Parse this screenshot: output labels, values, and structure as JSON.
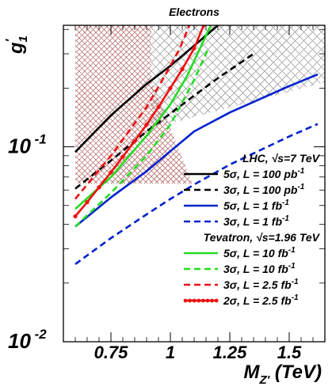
{
  "chart_data": {
    "type": "line",
    "title": "Electrons",
    "ylabel": {
      "main": "g",
      "sup": "'",
      "sub": "1"
    },
    "xlabel": {
      "main": "M",
      "sub": "Z'",
      "rest": " (TeV)"
    },
    "xlim": [
      0.55,
      1.65
    ],
    "ylim": [
      0.01,
      0.42
    ],
    "yscale": "log",
    "x_ticks": [
      "0.75",
      "1",
      "1.25",
      "1.5"
    ],
    "x_tick_values": [
      0.75,
      1.0,
      1.25,
      1.5
    ],
    "y_ticks": [
      {
        "base": "10",
        "exp": "-1",
        "value": 0.1
      },
      {
        "base": "10",
        "exp": "-2",
        "value": 0.01
      }
    ],
    "grid": false,
    "legend_position": "right",
    "excluded_regions": [
      {
        "pattern": "fine dark-red crosshatch",
        "color": "#8b1a1a",
        "x": [
          0.6,
          0.92
        ]
      },
      {
        "pattern": "coarse black crosshatch",
        "color": "#000000",
        "x": [
          0.92,
          1.65
        ]
      }
    ],
    "legend": [
      {
        "type": "header",
        "text": "LHC, √s=7 TeV"
      },
      {
        "type": "entry",
        "text": "5σ, L = 100 pb",
        "sup": "-1",
        "series": 0
      },
      {
        "type": "entry",
        "text": "3σ, L = 100 pb",
        "sup": "-1",
        "series": 1
      },
      {
        "type": "entry",
        "text": "5σ, L = 1 fb",
        "sup": "-1",
        "series": 2
      },
      {
        "type": "entry",
        "text": "3σ, L = 1 fb",
        "sup": "-1",
        "series": 3
      },
      {
        "type": "header",
        "text": "Tevatron, √s=1.96 TeV"
      },
      {
        "type": "entry",
        "text": "5σ, L = 10 fb",
        "sup": "-1",
        "series": 4
      },
      {
        "type": "entry",
        "text": "3σ, L = 10 fb",
        "sup": "-1",
        "series": 5
      },
      {
        "type": "entry",
        "text": "3σ, L = 2.5 fb",
        "sup": "-1",
        "series": 6
      },
      {
        "type": "entry",
        "text": "2σ, L = 2.5 fb",
        "sup": "-1",
        "series": 7
      }
    ],
    "series": [
      {
        "name": "5σ, L = 100 pb-1",
        "color": "#000000",
        "dash": "solid",
        "x": [
          0.6,
          0.75,
          0.9,
          1.0,
          1.1,
          1.2
        ],
        "y": [
          0.094,
          0.145,
          0.21,
          0.26,
          0.33,
          0.42
        ]
      },
      {
        "name": "3σ, L = 100 pb-1",
        "color": "#000000",
        "dash": "dashed",
        "x": [
          0.6,
          0.75,
          0.9,
          1.0,
          1.1,
          1.2,
          1.35
        ],
        "y": [
          0.061,
          0.085,
          0.12,
          0.148,
          0.183,
          0.225,
          0.3
        ]
      },
      {
        "name": "5σ, L = 1 fb-1",
        "color": "#0022cc",
        "dash": "solid",
        "x": [
          0.6,
          0.75,
          0.9,
          1.0,
          1.1,
          1.25,
          1.5,
          1.62
        ],
        "y": [
          0.039,
          0.055,
          0.075,
          0.095,
          0.12,
          0.15,
          0.205,
          0.235
        ]
      },
      {
        "name": "3σ, L = 1 fb-1",
        "color": "#0022cc",
        "dash": "dashed",
        "x": [
          0.6,
          0.75,
          0.9,
          1.0,
          1.1,
          1.25,
          1.5,
          1.62
        ],
        "y": [
          0.025,
          0.034,
          0.045,
          0.054,
          0.064,
          0.081,
          0.113,
          0.131
        ]
      },
      {
        "name": "5σ, L = 10 fb-1",
        "color": "#22dd22",
        "dash": "solid",
        "x": [
          0.6,
          0.75,
          0.9,
          1.0,
          1.07,
          1.13,
          1.17
        ],
        "y": [
          0.048,
          0.07,
          0.114,
          0.165,
          0.23,
          0.33,
          0.42
        ]
      },
      {
        "name": "3σ, L = 10 fb-1",
        "color": "#22dd22",
        "dash": "dashed",
        "x": [
          0.6,
          0.75,
          0.9,
          1.0,
          1.1,
          1.16
        ],
        "y": [
          0.039,
          0.058,
          0.09,
          0.13,
          0.22,
          0.32
        ]
      },
      {
        "name": "3σ, L = 2.5 fb-1",
        "color": "#ee1111",
        "dash": "dashed",
        "x": [
          0.6,
          0.75,
          0.9,
          0.98,
          1.04,
          1.08
        ],
        "y": [
          0.054,
          0.09,
          0.16,
          0.235,
          0.32,
          0.42
        ]
      },
      {
        "name": "2σ, L = 2.5 fb-1",
        "color": "#ee1111",
        "dash": "solid-dots",
        "x": [
          0.6,
          0.65,
          0.7,
          0.75,
          0.8,
          0.85,
          0.9,
          0.95,
          1.0,
          1.05,
          1.1,
          1.14
        ],
        "y": [
          0.044,
          0.052,
          0.062,
          0.074,
          0.089,
          0.107,
          0.13,
          0.16,
          0.2,
          0.25,
          0.32,
          0.42
        ]
      }
    ]
  }
}
